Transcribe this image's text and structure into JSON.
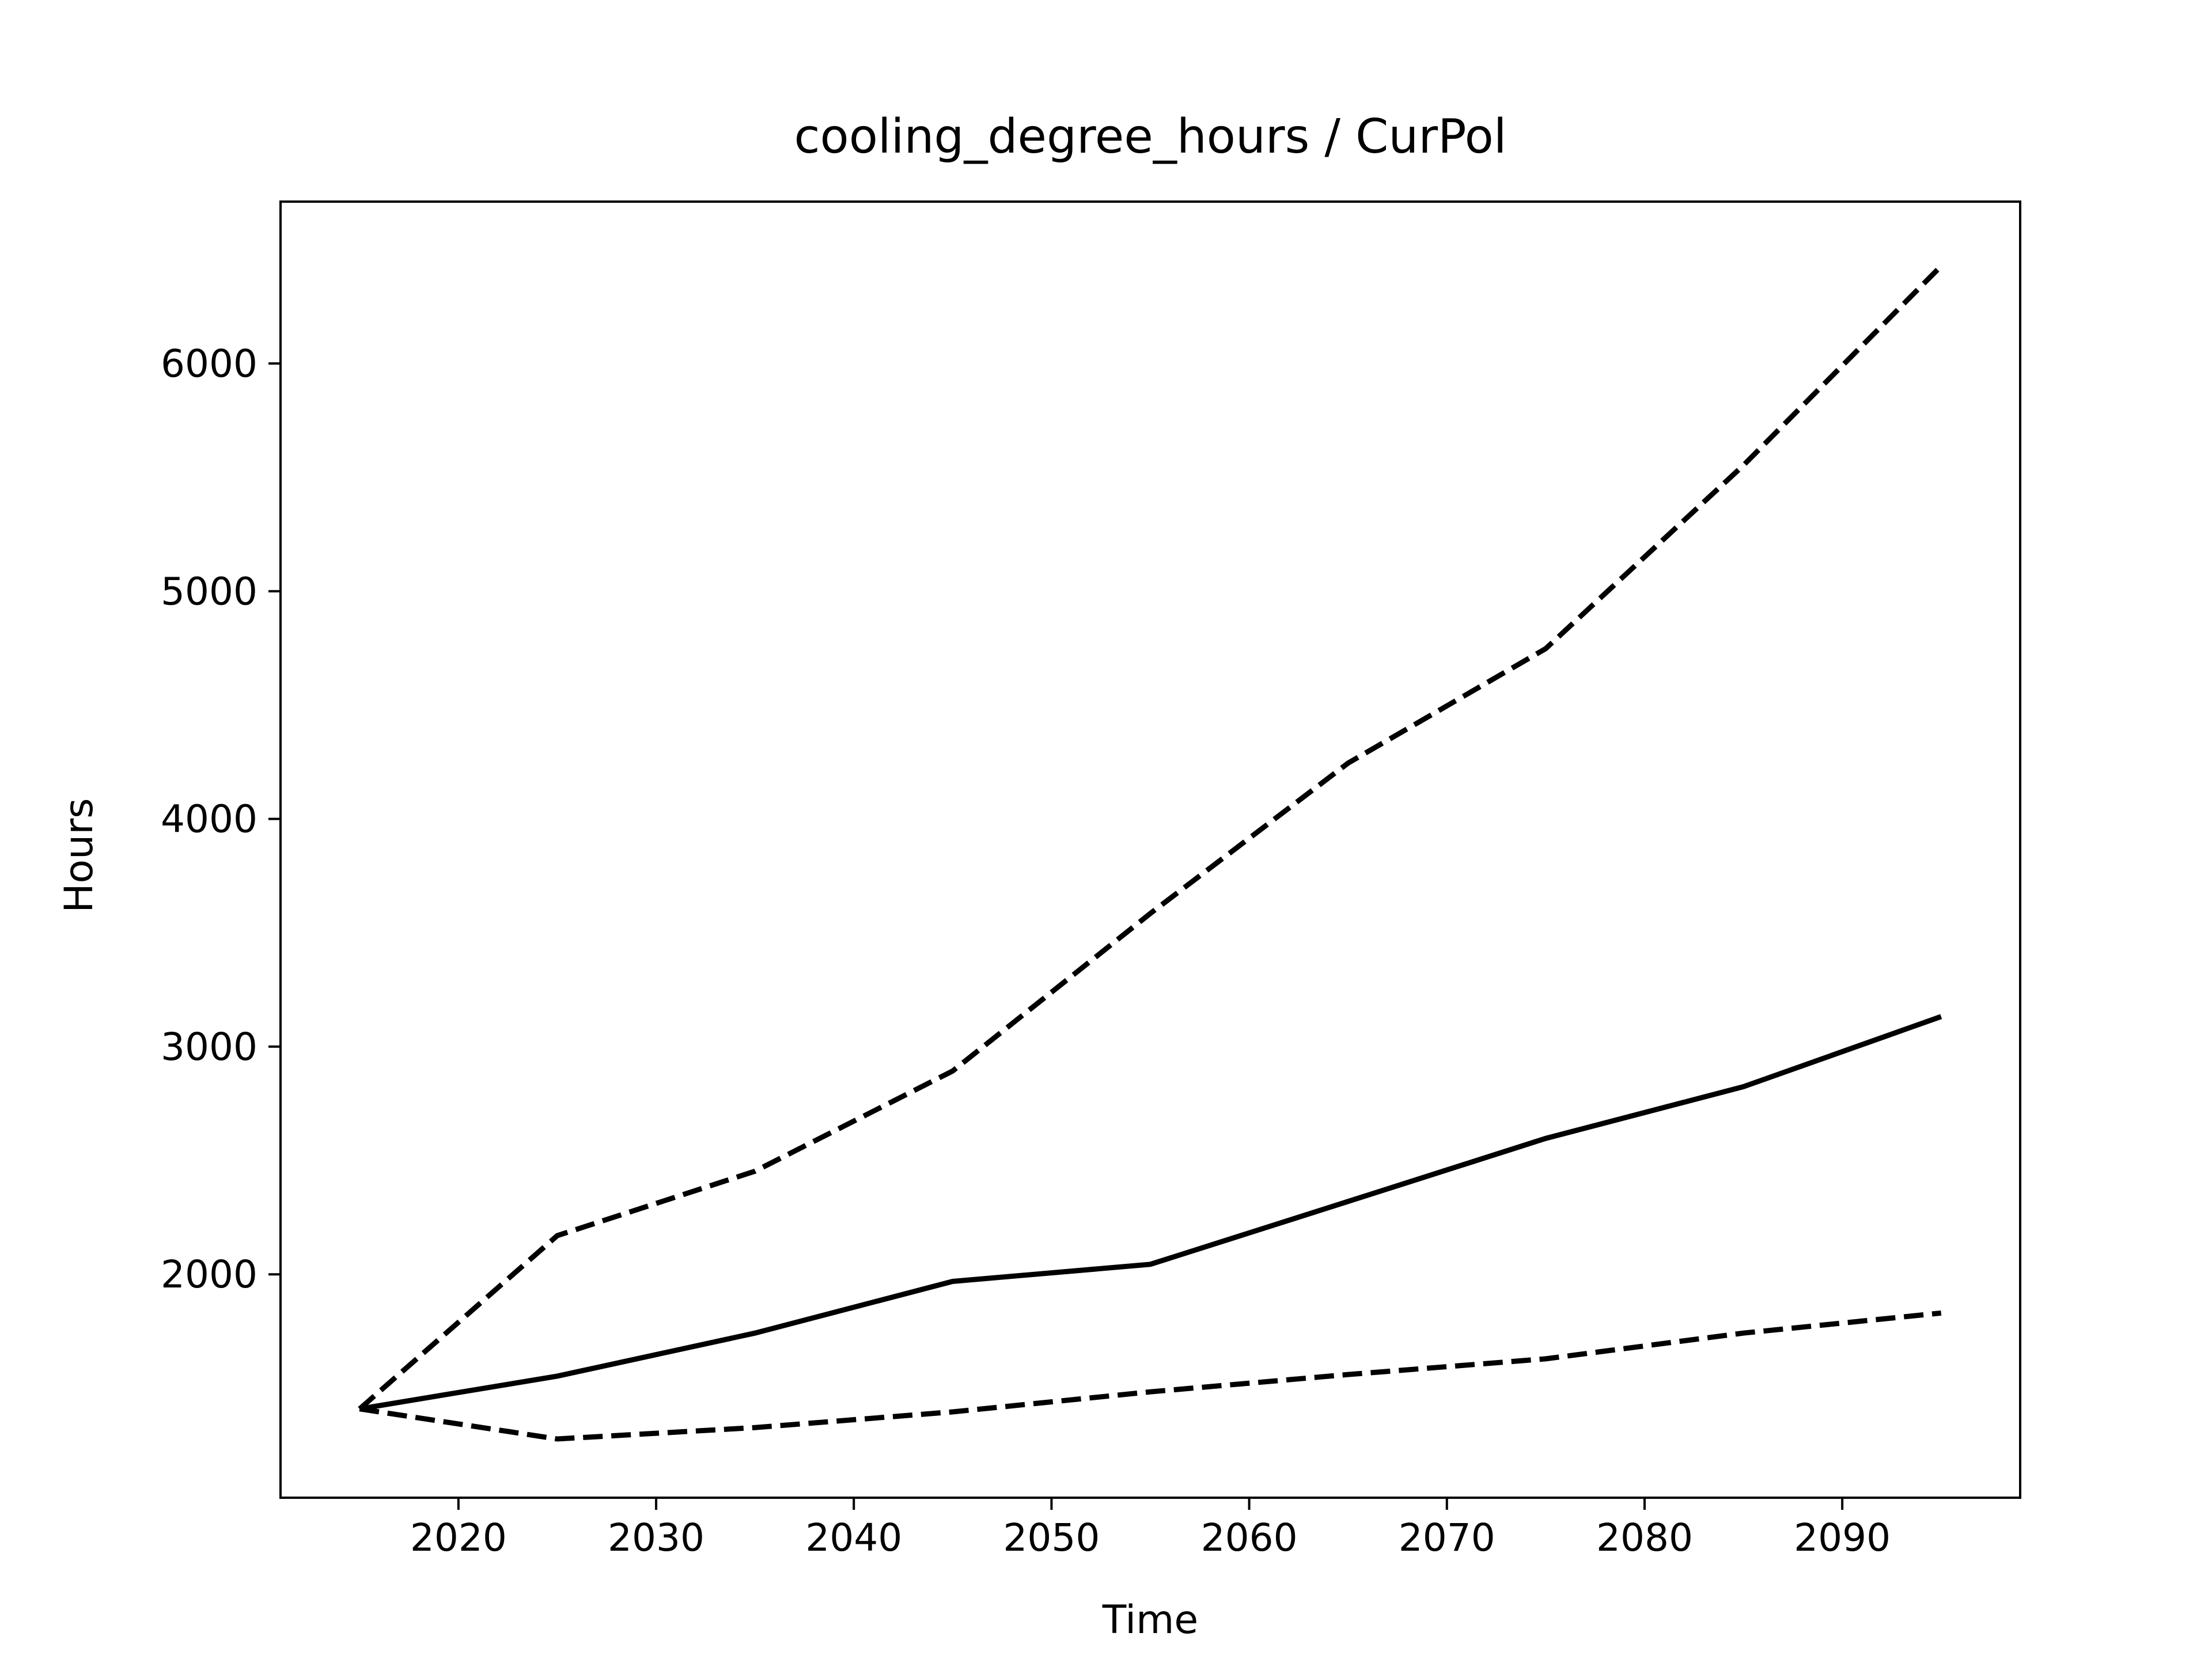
{
  "chart_data": {
    "type": "line",
    "title": "cooling_degree_hours / CurPol",
    "x_label": "Time",
    "y_label": "Hours",
    "x": [
      2015,
      2025,
      2035,
      2045,
      2055,
      2065,
      2075,
      2085,
      2095
    ],
    "series": [
      {
        "color": "#000000",
        "linestyle": "solid",
        "values": [
          1409,
          1553,
          1742,
          1969,
          2044,
          2320,
          2597,
          2824,
          3132
        ]
      },
      {
        "color": "#000000",
        "linestyle": "dashed",
        "values": [
          1409,
          2170,
          2453,
          2893,
          3585,
          4245,
          4748,
          5553,
          6428
        ]
      },
      {
        "color": "#000000",
        "linestyle": "dashed",
        "values": [
          1409,
          1277,
          1327,
          1396,
          1484,
          1560,
          1629,
          1742,
          1830
        ]
      }
    ],
    "xlim": [
      2011,
      2099
    ],
    "ylim": [
      1019,
      6711
    ],
    "xticks": [
      2020,
      2030,
      2040,
      2050,
      2060,
      2070,
      2080,
      2090
    ],
    "yticks": [
      2000,
      3000,
      4000,
      5000,
      6000
    ],
    "grid": false
  }
}
